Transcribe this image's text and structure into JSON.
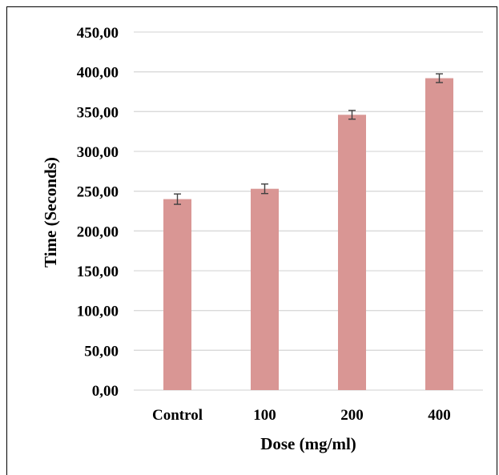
{
  "chart_data": {
    "type": "bar",
    "categories": [
      "Control",
      "100",
      "200",
      "400"
    ],
    "values": [
      240,
      253,
      346,
      392
    ],
    "errors": [
      6.5,
      6.0,
      5.5,
      5.5
    ],
    "xlabel": "Dose (mg/ml)",
    "ylabel": "Time (Seconds)",
    "ylim": [
      0,
      450
    ],
    "yticks": [
      0,
      50,
      100,
      150,
      200,
      250,
      300,
      350,
      400,
      450
    ],
    "ytick_labels": [
      "0,00",
      "50,00",
      "100,00",
      "150,00",
      "200,00",
      "250,00",
      "300,00",
      "350,00",
      "400,00",
      "450,00"
    ],
    "grid": true,
    "colors": {
      "bar": "#d99694",
      "grid": "#d9d9d9",
      "error_bar": "#404040",
      "axis": "#d9d9d9"
    }
  }
}
